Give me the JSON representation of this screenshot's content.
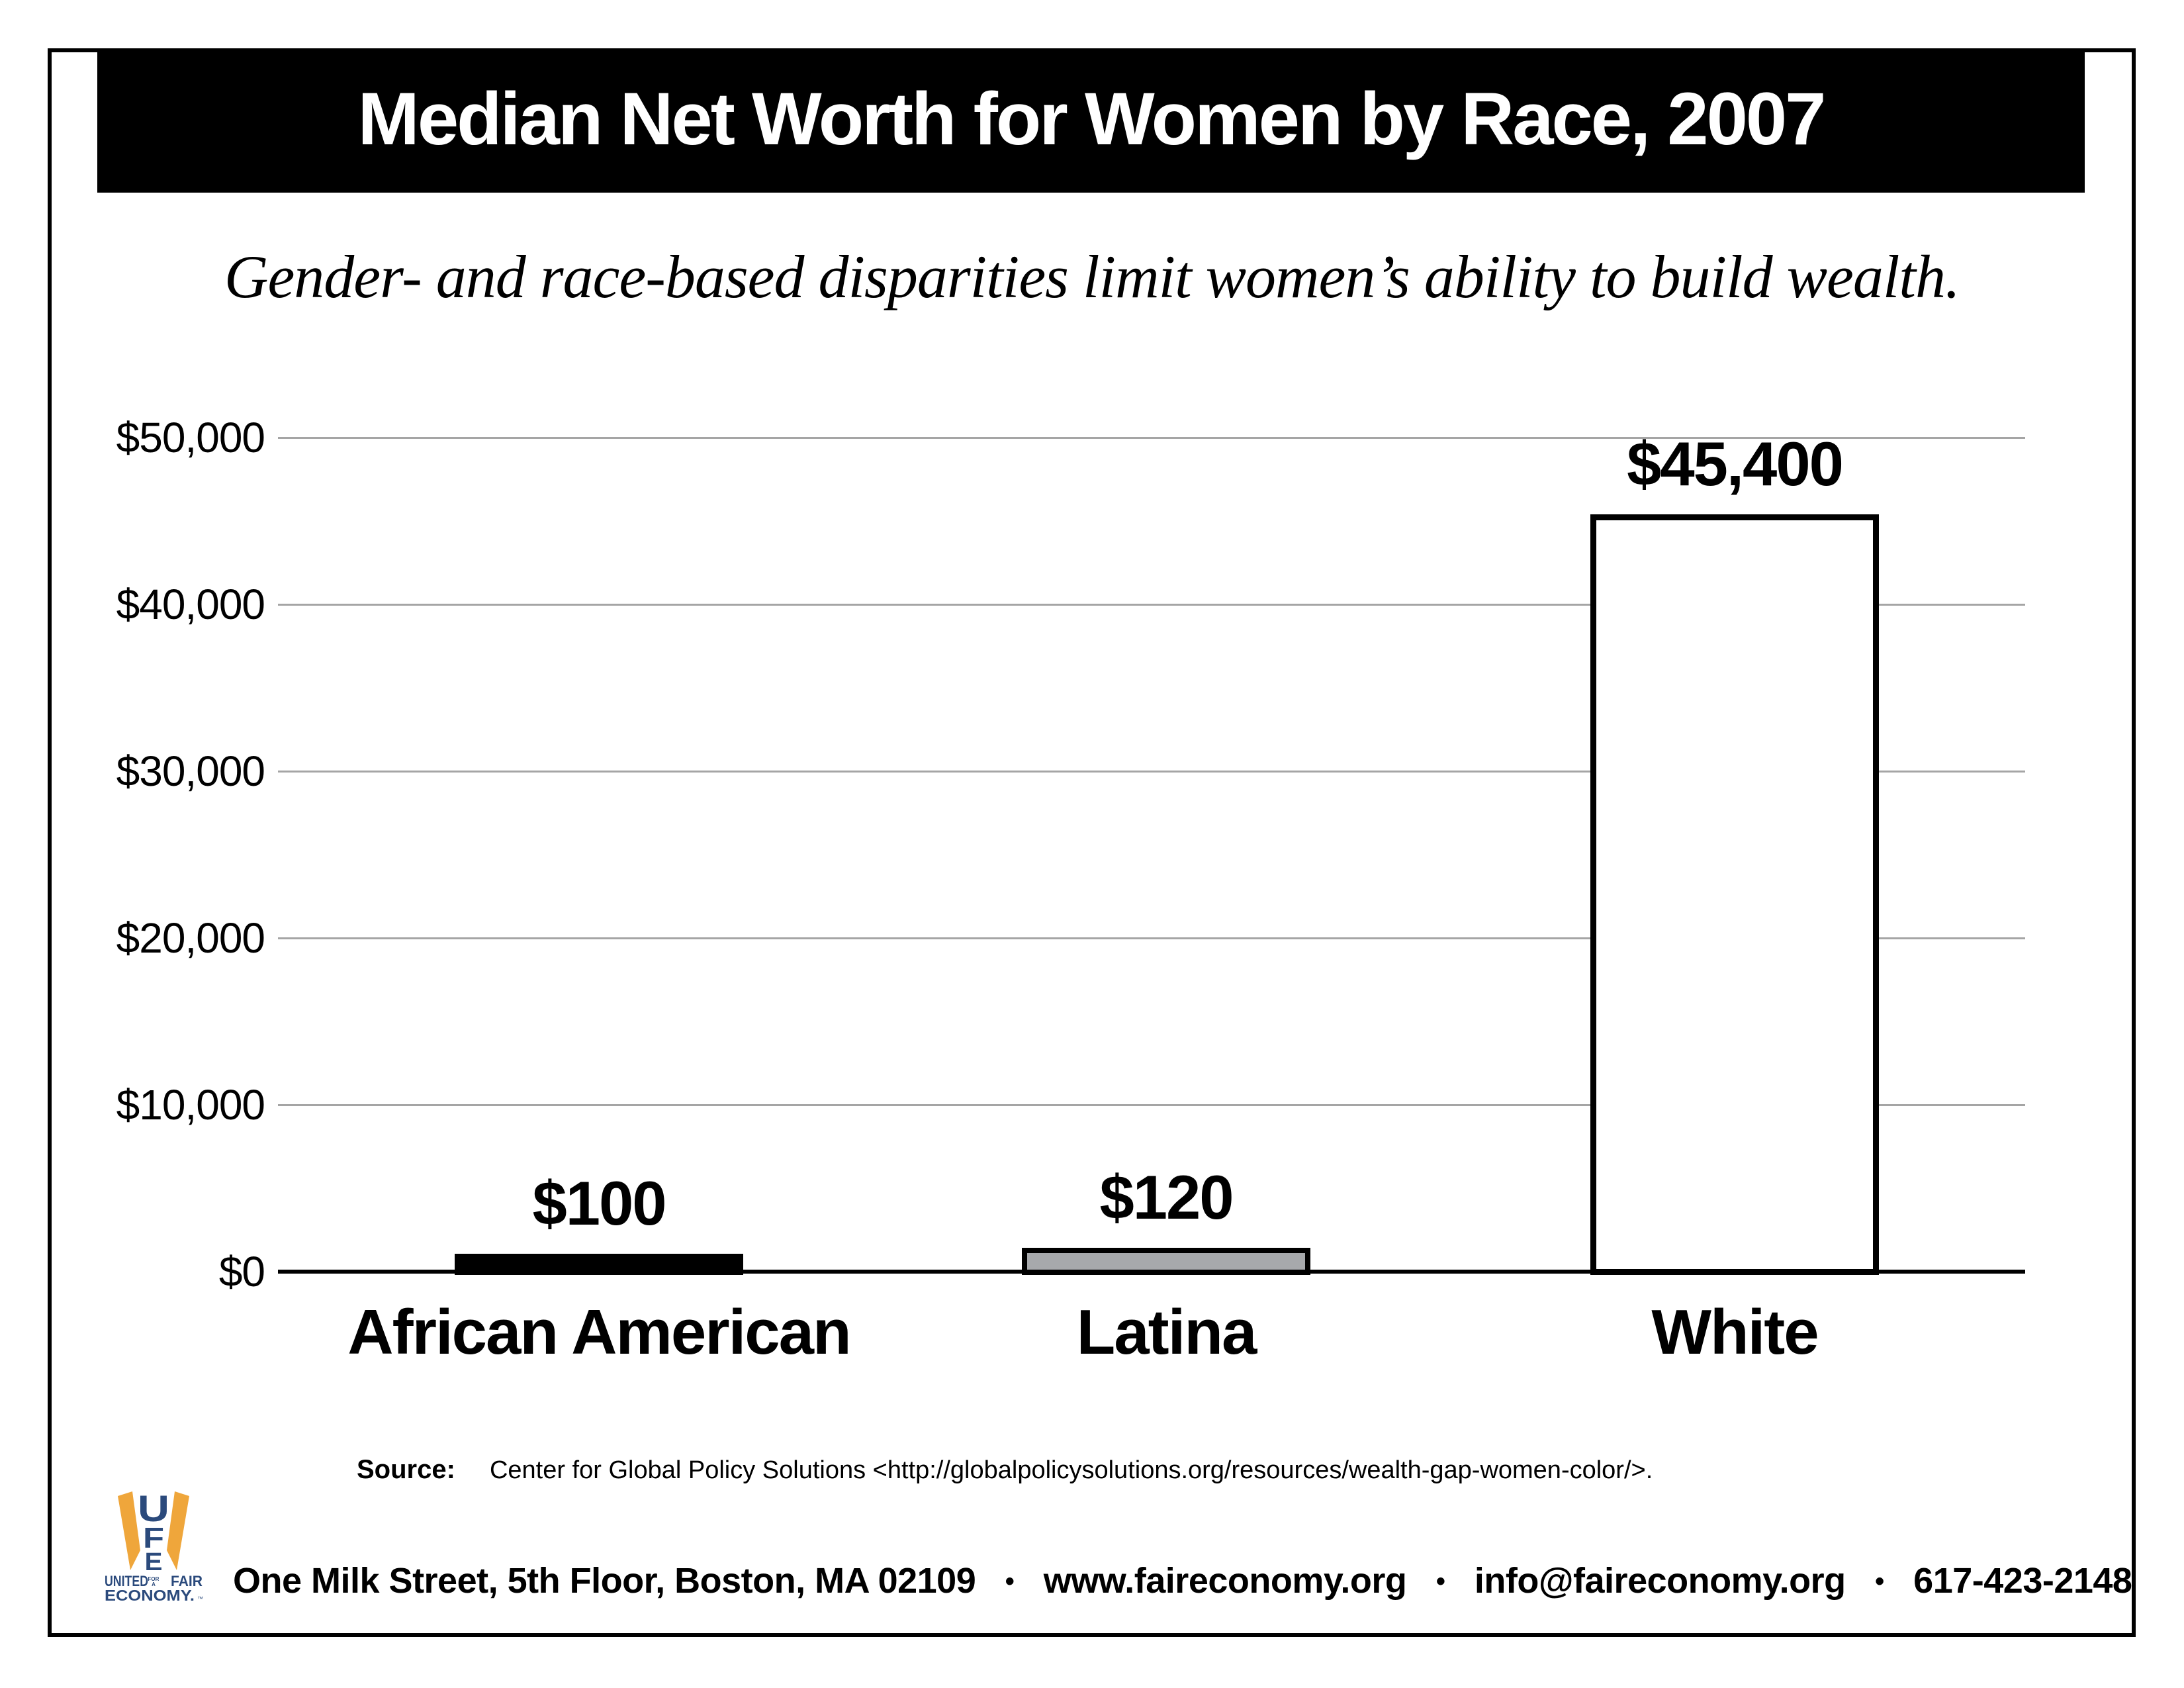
{
  "header": {
    "title": "Median Net Worth for Women by Race, 2007",
    "subtitle": "Gender- and race-based disparities limit women’s ability to build wealth."
  },
  "chart_data": {
    "type": "bar",
    "title": "Median Net Worth for Women by Race, 2007",
    "subtitle": "Gender- and race-based disparities limit women’s ability to build wealth.",
    "categories": [
      "African American",
      "Latina",
      "White"
    ],
    "values": [
      100,
      120,
      45400
    ],
    "value_labels": [
      "$100",
      "$120",
      "$45,400"
    ],
    "bar_colors": [
      "#000000",
      "#a7a9ac",
      "#ffffff"
    ],
    "xlabel": "",
    "ylabel": "",
    "ylim": [
      0,
      50000
    ],
    "yticks": [
      0,
      10000,
      20000,
      30000,
      40000,
      50000
    ],
    "ytick_labels": [
      "$0",
      "$10,000",
      "$20,000",
      "$30,000",
      "$40,000",
      "$50,000"
    ],
    "grid": true,
    "legend": false
  },
  "source": {
    "label": "Source:",
    "text": "Center for Global Policy Solutions <http://globalpolicysolutions.org/resources/wealth-gap-women-color/>."
  },
  "footer": {
    "logo": {
      "u": "U",
      "f": "F",
      "e": "E",
      "united": "UNITED",
      "for_top": "FOR",
      "for_bottom": "A",
      "fair": "FAIR",
      "economy": "ECONOMY.",
      "tm": "™"
    },
    "address": "One Milk Street, 5th Floor, Boston, MA 02109",
    "website": "www.faireconomy.org",
    "email": "info@faireconomy.org",
    "phone": "617-423-2148",
    "separator": "•"
  },
  "colors": {
    "frame": "#000000",
    "title_bar_bg": "#000000",
    "title_text": "#ffffff",
    "grid_line": "#a5a5a5",
    "axis_line": "#000000",
    "logo_navy": "#2b4a7c",
    "logo_gold": "#efa63b"
  }
}
